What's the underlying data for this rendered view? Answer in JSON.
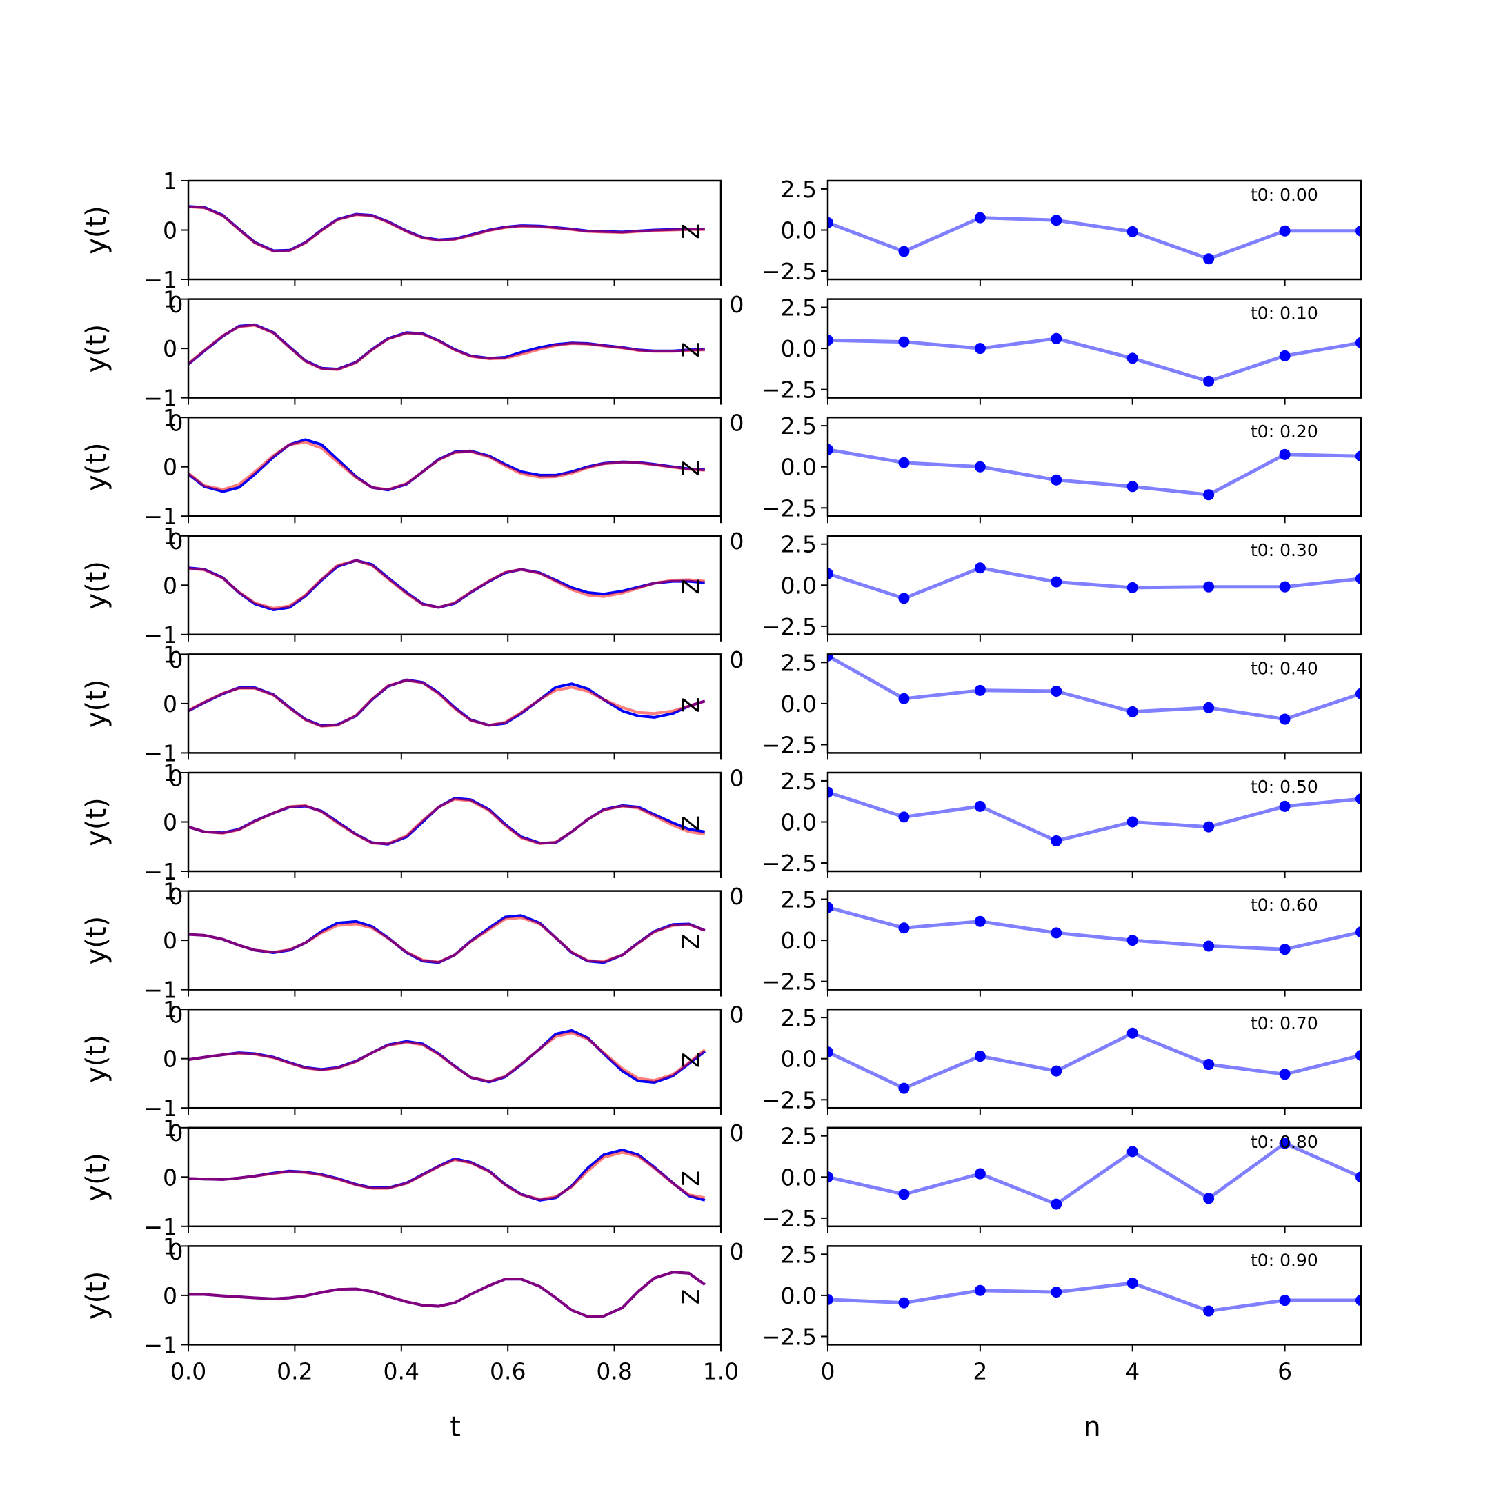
{
  "chart_data": {
    "type": "line",
    "grid": false,
    "left": {
      "ylabel": "y(t)",
      "xlabel": "t",
      "xlim": [
        0.0,
        1.0
      ],
      "ylim": [
        -1,
        1
      ],
      "xticks": [
        "0.0",
        "0.2",
        "0.4",
        "0.6",
        "0.8",
        "1.0"
      ],
      "yticks": [
        "1",
        "0",
        "−1"
      ],
      "x": [
        0.0,
        0.03,
        0.065,
        0.095,
        0.125,
        0.16,
        0.19,
        0.22,
        0.25,
        0.28,
        0.315,
        0.345,
        0.375,
        0.41,
        0.44,
        0.47,
        0.5,
        0.53,
        0.565,
        0.595,
        0.625,
        0.66,
        0.69,
        0.72,
        0.75,
        0.78,
        0.815,
        0.845,
        0.875,
        0.91,
        0.94,
        0.97
      ],
      "stray_label": "Z",
      "stray_tick": "0",
      "series_colors": [
        "#0000ff",
        "#ff0000"
      ],
      "panels": [
        {
          "true": [
            0.48,
            0.46,
            0.3,
            0.02,
            -0.25,
            -0.42,
            -0.41,
            -0.25,
            0.0,
            0.22,
            0.32,
            0.3,
            0.17,
            -0.02,
            -0.15,
            -0.2,
            -0.18,
            -0.1,
            0.0,
            0.06,
            0.09,
            0.08,
            0.05,
            0.02,
            -0.02,
            -0.03,
            -0.04,
            -0.02,
            0.0,
            0.01,
            0.02,
            0.02
          ],
          "pred": [
            0.47,
            0.45,
            0.29,
            0.01,
            -0.26,
            -0.43,
            -0.42,
            -0.26,
            -0.01,
            0.21,
            0.31,
            0.29,
            0.16,
            -0.03,
            -0.16,
            -0.21,
            -0.19,
            -0.11,
            -0.01,
            0.05,
            0.08,
            0.07,
            0.04,
            0.01,
            -0.03,
            -0.04,
            -0.05,
            -0.03,
            -0.01,
            0.0,
            0.01,
            0.01
          ]
        },
        {
          "true": [
            -0.32,
            -0.05,
            0.25,
            0.45,
            0.48,
            0.32,
            0.03,
            -0.25,
            -0.4,
            -0.42,
            -0.28,
            -0.02,
            0.2,
            0.32,
            0.3,
            0.16,
            -0.02,
            -0.15,
            -0.2,
            -0.18,
            -0.08,
            0.02,
            0.08,
            0.11,
            0.1,
            0.06,
            0.02,
            -0.03,
            -0.05,
            -0.05,
            -0.03,
            -0.02
          ],
          "pred": [
            -0.31,
            -0.04,
            0.26,
            0.44,
            0.47,
            0.31,
            0.02,
            -0.26,
            -0.41,
            -0.43,
            -0.29,
            -0.03,
            0.19,
            0.31,
            0.29,
            0.15,
            -0.03,
            -0.16,
            -0.21,
            -0.2,
            -0.12,
            -0.02,
            0.06,
            0.1,
            0.09,
            0.05,
            0.01,
            -0.04,
            -0.06,
            -0.06,
            -0.04,
            -0.03
          ]
        },
        {
          "true": [
            -0.15,
            -0.4,
            -0.5,
            -0.42,
            -0.15,
            0.2,
            0.45,
            0.55,
            0.45,
            0.15,
            -0.2,
            -0.42,
            -0.47,
            -0.35,
            -0.1,
            0.15,
            0.3,
            0.32,
            0.22,
            0.05,
            -0.1,
            -0.17,
            -0.17,
            -0.1,
            0.0,
            0.07,
            0.1,
            0.09,
            0.05,
            0.0,
            -0.04,
            -0.06
          ],
          "pred": [
            -0.13,
            -0.38,
            -0.46,
            -0.36,
            -0.1,
            0.23,
            0.45,
            0.5,
            0.38,
            0.1,
            -0.22,
            -0.42,
            -0.46,
            -0.34,
            -0.1,
            0.14,
            0.29,
            0.31,
            0.2,
            0.02,
            -0.14,
            -0.21,
            -0.2,
            -0.13,
            -0.02,
            0.06,
            0.09,
            0.08,
            0.04,
            -0.01,
            -0.05,
            -0.07
          ]
        },
        {
          "true": [
            0.35,
            0.32,
            0.15,
            -0.15,
            -0.38,
            -0.5,
            -0.45,
            -0.22,
            0.1,
            0.38,
            0.5,
            0.42,
            0.15,
            -0.15,
            -0.38,
            -0.45,
            -0.37,
            -0.15,
            0.08,
            0.25,
            0.32,
            0.25,
            0.1,
            -0.05,
            -0.15,
            -0.18,
            -0.12,
            -0.04,
            0.04,
            0.08,
            0.08,
            0.05
          ],
          "pred": [
            0.34,
            0.31,
            0.14,
            -0.14,
            -0.36,
            -0.47,
            -0.42,
            -0.2,
            0.12,
            0.4,
            0.5,
            0.4,
            0.13,
            -0.17,
            -0.39,
            -0.45,
            -0.36,
            -0.14,
            0.09,
            0.26,
            0.32,
            0.24,
            0.08,
            -0.09,
            -0.2,
            -0.23,
            -0.16,
            -0.06,
            0.04,
            0.1,
            0.11,
            0.08
          ]
        },
        {
          "true": [
            -0.15,
            0.02,
            0.2,
            0.32,
            0.32,
            0.18,
            -0.08,
            -0.32,
            -0.45,
            -0.43,
            -0.25,
            0.08,
            0.35,
            0.48,
            0.43,
            0.22,
            -0.08,
            -0.33,
            -0.44,
            -0.4,
            -0.2,
            0.08,
            0.33,
            0.4,
            0.3,
            0.08,
            -0.15,
            -0.25,
            -0.28,
            -0.2,
            -0.05,
            0.05
          ],
          "pred": [
            -0.14,
            0.03,
            0.21,
            0.31,
            0.31,
            0.17,
            -0.09,
            -0.33,
            -0.46,
            -0.44,
            -0.24,
            0.09,
            0.36,
            0.47,
            0.42,
            0.2,
            -0.1,
            -0.34,
            -0.44,
            -0.38,
            -0.18,
            0.08,
            0.27,
            0.33,
            0.25,
            0.08,
            -0.08,
            -0.18,
            -0.2,
            -0.15,
            -0.05,
            0.05
          ]
        },
        {
          "true": [
            -0.1,
            -0.2,
            -0.22,
            -0.15,
            0.02,
            0.18,
            0.3,
            0.32,
            0.22,
            0.0,
            -0.25,
            -0.42,
            -0.45,
            -0.3,
            0.0,
            0.3,
            0.48,
            0.45,
            0.25,
            -0.05,
            -0.3,
            -0.43,
            -0.42,
            -0.2,
            0.05,
            0.25,
            0.33,
            0.3,
            0.15,
            -0.02,
            -0.15,
            -0.2
          ],
          "pred": [
            -0.1,
            -0.2,
            -0.23,
            -0.16,
            0.01,
            0.18,
            0.31,
            0.33,
            0.21,
            -0.02,
            -0.26,
            -0.43,
            -0.44,
            -0.28,
            0.03,
            0.3,
            0.46,
            0.43,
            0.23,
            -0.07,
            -0.32,
            -0.44,
            -0.41,
            -0.2,
            0.05,
            0.24,
            0.32,
            0.28,
            0.12,
            -0.07,
            -0.2,
            -0.25
          ]
        },
        {
          "true": [
            0.12,
            0.1,
            0.02,
            -0.1,
            -0.2,
            -0.25,
            -0.2,
            -0.05,
            0.18,
            0.35,
            0.38,
            0.28,
            0.05,
            -0.25,
            -0.42,
            -0.45,
            -0.3,
            -0.02,
            0.25,
            0.47,
            0.5,
            0.35,
            0.05,
            -0.25,
            -0.42,
            -0.45,
            -0.3,
            -0.05,
            0.18,
            0.32,
            0.33,
            0.2
          ],
          "pred": [
            0.12,
            0.1,
            0.02,
            -0.1,
            -0.2,
            -0.24,
            -0.19,
            -0.05,
            0.15,
            0.3,
            0.33,
            0.25,
            0.04,
            -0.24,
            -0.4,
            -0.44,
            -0.3,
            -0.03,
            0.22,
            0.43,
            0.46,
            0.33,
            0.05,
            -0.24,
            -0.41,
            -0.43,
            -0.3,
            -0.06,
            0.17,
            0.3,
            0.32,
            0.2
          ]
        },
        {
          "true": [
            -0.02,
            0.03,
            0.08,
            0.12,
            0.1,
            0.03,
            -0.08,
            -0.18,
            -0.22,
            -0.18,
            -0.05,
            0.12,
            0.28,
            0.35,
            0.3,
            0.1,
            -0.15,
            -0.38,
            -0.47,
            -0.37,
            -0.12,
            0.2,
            0.5,
            0.57,
            0.42,
            0.1,
            -0.25,
            -0.45,
            -0.48,
            -0.35,
            -0.1,
            0.15
          ],
          "pred": [
            -0.02,
            0.03,
            0.08,
            0.11,
            0.09,
            0.02,
            -0.09,
            -0.19,
            -0.23,
            -0.19,
            -0.06,
            0.12,
            0.27,
            0.33,
            0.28,
            0.09,
            -0.16,
            -0.38,
            -0.46,
            -0.36,
            -0.11,
            0.2,
            0.45,
            0.52,
            0.4,
            0.12,
            -0.2,
            -0.4,
            -0.44,
            -0.32,
            -0.08,
            0.18
          ]
        },
        {
          "true": [
            -0.03,
            -0.04,
            -0.05,
            -0.02,
            0.02,
            0.08,
            0.12,
            0.1,
            0.05,
            -0.03,
            -0.15,
            -0.22,
            -0.22,
            -0.12,
            0.05,
            0.22,
            0.37,
            0.3,
            0.12,
            -0.15,
            -0.35,
            -0.47,
            -0.42,
            -0.18,
            0.18,
            0.45,
            0.55,
            0.45,
            0.2,
            -0.12,
            -0.38,
            -0.47
          ],
          "pred": [
            -0.03,
            -0.04,
            -0.05,
            -0.02,
            0.02,
            0.07,
            0.11,
            0.09,
            0.04,
            -0.04,
            -0.16,
            -0.23,
            -0.23,
            -0.13,
            0.04,
            0.21,
            0.35,
            0.29,
            0.11,
            -0.16,
            -0.36,
            -0.45,
            -0.4,
            -0.2,
            0.12,
            0.4,
            0.5,
            0.42,
            0.18,
            -0.13,
            -0.36,
            -0.42
          ]
        },
        {
          "true": [
            0.02,
            0.02,
            -0.01,
            -0.03,
            -0.05,
            -0.07,
            -0.05,
            -0.01,
            0.06,
            0.12,
            0.13,
            0.08,
            -0.02,
            -0.13,
            -0.2,
            -0.22,
            -0.15,
            0.02,
            0.2,
            0.33,
            0.33,
            0.18,
            -0.05,
            -0.3,
            -0.43,
            -0.42,
            -0.25,
            0.08,
            0.35,
            0.47,
            0.45,
            0.22
          ],
          "pred": [
            0.02,
            0.02,
            -0.01,
            -0.03,
            -0.05,
            -0.07,
            -0.05,
            -0.01,
            0.06,
            0.12,
            0.13,
            0.08,
            -0.02,
            -0.13,
            -0.2,
            -0.22,
            -0.15,
            0.02,
            0.2,
            0.33,
            0.33,
            0.18,
            -0.05,
            -0.3,
            -0.43,
            -0.42,
            -0.25,
            0.08,
            0.35,
            0.47,
            0.45,
            0.22
          ]
        }
      ]
    },
    "right": {
      "xlabel": "n",
      "xlim": [
        0,
        7
      ],
      "ylim": [
        -3,
        3
      ],
      "xticks": [
        "0",
        "2",
        "4",
        "6"
      ],
      "xtick_values": [
        0,
        2,
        4,
        6
      ],
      "yticks": [
        "2.5",
        "0.0",
        "−2.5"
      ],
      "ytick_values": [
        2.5,
        0.0,
        -2.5
      ],
      "x": [
        0,
        1,
        2,
        3,
        4,
        5,
        6,
        7
      ],
      "color": "#0000ff",
      "stray_tick": "0",
      "panels": [
        {
          "label": "t0: 0.00",
          "values": [
            0.45,
            -1.3,
            0.75,
            0.6,
            -0.1,
            -1.75,
            -0.05,
            -0.05
          ]
        },
        {
          "label": "t0: 0.10",
          "values": [
            0.5,
            0.4,
            0.0,
            0.6,
            -0.6,
            -2.0,
            -0.45,
            0.35
          ]
        },
        {
          "label": "t0: 0.20",
          "values": [
            1.05,
            0.25,
            0.0,
            -0.8,
            -1.2,
            -1.7,
            0.75,
            0.65
          ]
        },
        {
          "label": "t0: 0.30",
          "values": [
            0.7,
            -0.8,
            1.05,
            0.2,
            -0.15,
            -0.1,
            -0.1,
            0.4
          ]
        },
        {
          "label": "t0: 0.40",
          "values": [
            2.9,
            0.3,
            0.8,
            0.75,
            -0.5,
            -0.25,
            -0.95,
            0.6
          ]
        },
        {
          "label": "t0: 0.50",
          "values": [
            1.8,
            0.3,
            0.95,
            -1.15,
            0.0,
            -0.3,
            0.95,
            1.4
          ]
        },
        {
          "label": "t0: 0.60",
          "values": [
            2.0,
            0.75,
            1.15,
            0.45,
            0.0,
            -0.35,
            -0.55,
            0.5
          ]
        },
        {
          "label": "t0: 0.70",
          "values": [
            0.4,
            -1.8,
            0.15,
            -0.75,
            1.55,
            -0.35,
            -0.95,
            0.2
          ]
        },
        {
          "label": "t0: 0.80",
          "values": [
            0.0,
            -1.05,
            0.2,
            -1.65,
            1.55,
            -1.3,
            2.05,
            0.0
          ]
        },
        {
          "label": "t0: 0.90",
          "values": [
            -0.25,
            -0.45,
            0.3,
            0.2,
            0.75,
            -0.95,
            -0.3,
            -0.3
          ]
        }
      ]
    }
  }
}
